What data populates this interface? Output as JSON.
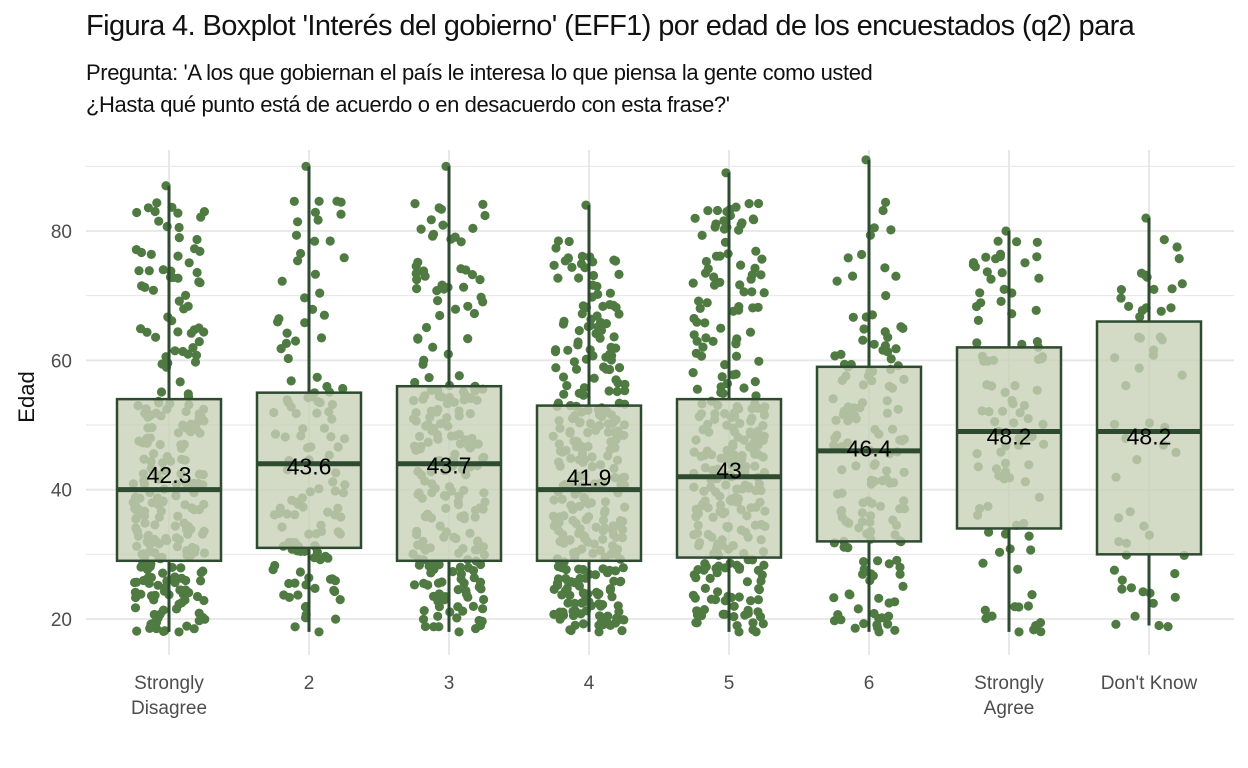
{
  "header": {
    "title": "Figura 4. Boxplot 'Interés del gobierno' (EFF1) por edad de los encuestados (q2) para",
    "subtitle_line1": "Pregunta: 'A los que gobiernan el país le interesa lo que piensa la gente como usted",
    "subtitle_line2": "¿Hasta qué punto está de acuerdo o en desacuerdo con esta frase?'"
  },
  "colors": {
    "box_fill": "#c8d1b8",
    "box_stroke": "#2e4a30",
    "points": "#4f7a42",
    "grid": "#e6e6e6"
  },
  "chart_data": {
    "type": "boxplot",
    "ylabel": "Edad",
    "ylim": [
      13,
      93
    ],
    "yticks": [
      20,
      40,
      60,
      80
    ],
    "grid": true,
    "legend": "none",
    "categories": [
      {
        "tick_lines": [
          "Strongly",
          "Disagree"
        ],
        "q1": 29,
        "median": 40,
        "q3": 54,
        "whisker_low": 18,
        "whisker_high": 87,
        "mean_label": "42.3",
        "mean": 42.3,
        "n_points": 260,
        "max_point": 87
      },
      {
        "tick_lines": [
          "2"
        ],
        "q1": 31,
        "median": 44,
        "q3": 55,
        "whisker_low": 18,
        "whisker_high": 90,
        "mean_label": "43.6",
        "mean": 43.6,
        "n_points": 130,
        "max_point": 90
      },
      {
        "tick_lines": [
          "3"
        ],
        "q1": 29,
        "median": 44,
        "q3": 56,
        "whisker_low": 18,
        "whisker_high": 90,
        "mean_label": "43.7",
        "mean": 43.7,
        "n_points": 230,
        "max_point": 90
      },
      {
        "tick_lines": [
          "4"
        ],
        "q1": 29,
        "median": 40,
        "q3": 53,
        "whisker_low": 18,
        "whisker_high": 84,
        "mean_label": "41.9",
        "mean": 41.9,
        "n_points": 320,
        "max_point": 84
      },
      {
        "tick_lines": [
          "5"
        ],
        "q1": 29.5,
        "median": 42,
        "q3": 54,
        "whisker_low": 18,
        "whisker_high": 89,
        "mean_label": "43",
        "mean": 43,
        "n_points": 290,
        "max_point": 89
      },
      {
        "tick_lines": [
          "6"
        ],
        "q1": 32,
        "median": 46,
        "q3": 59,
        "whisker_low": 18,
        "whisker_high": 91,
        "mean_label": "46.4",
        "mean": 46.4,
        "n_points": 150,
        "max_point": 91
      },
      {
        "tick_lines": [
          "Strongly",
          "Agree"
        ],
        "q1": 34,
        "median": 49,
        "q3": 62,
        "whisker_low": 18,
        "whisker_high": 80,
        "mean_label": "48.2",
        "mean": 48.2,
        "n_points": 95,
        "max_point": 80
      },
      {
        "tick_lines": [
          "Don't Know"
        ],
        "q1": 30,
        "median": 49,
        "q3": 66,
        "whisker_low": 19,
        "whisker_high": 82,
        "mean_label": "48.2",
        "mean": 48.2,
        "n_points": 55,
        "max_point": 82
      }
    ]
  }
}
